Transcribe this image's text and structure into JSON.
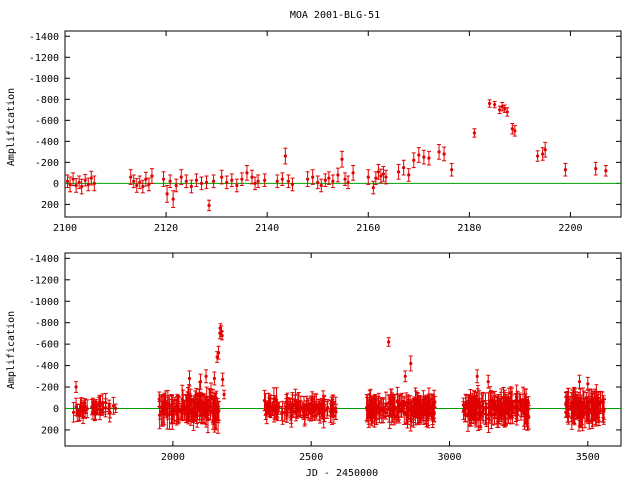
{
  "title": "MOA 2001-BLG-51",
  "colors": {
    "points": "#e00000",
    "baseline": "#00a000",
    "frame": "#000000"
  },
  "chart_data": [
    {
      "type": "scatter",
      "name": "top-panel",
      "ylabel": "Amplification",
      "xlabel": "",
      "xlim": [
        2100,
        2210
      ],
      "ylim": [
        320,
        -1450
      ],
      "y_inverted": true,
      "xticks": [
        2100,
        2120,
        2140,
        2160,
        2180,
        2200
      ],
      "yticks": [
        -1400,
        -1200,
        -1000,
        -800,
        -600,
        -400,
        -200,
        0,
        200
      ],
      "baseline": 0,
      "error_bars": true,
      "points": [
        [
          2100.5,
          -20,
          60
        ],
        [
          2101,
          10,
          70
        ],
        [
          2101.6,
          -40,
          60
        ],
        [
          2102.2,
          20,
          65
        ],
        [
          2102.8,
          -10,
          60
        ],
        [
          2103.3,
          30,
          70
        ],
        [
          2104,
          -30,
          55
        ],
        [
          2104.6,
          10,
          60
        ],
        [
          2105.2,
          -50,
          65
        ],
        [
          2105.8,
          0,
          70
        ],
        [
          2113,
          -60,
          70
        ],
        [
          2113.6,
          -20,
          60
        ],
        [
          2114.2,
          20,
          65
        ],
        [
          2114.8,
          -10,
          60
        ],
        [
          2115.4,
          30,
          60
        ],
        [
          2116,
          -40,
          65
        ],
        [
          2116.6,
          10,
          60
        ],
        [
          2117.2,
          -70,
          70
        ],
        [
          2119.5,
          -40,
          70
        ],
        [
          2120.2,
          100,
          80
        ],
        [
          2120.8,
          -20,
          60
        ],
        [
          2121.4,
          150,
          80
        ],
        [
          2122,
          20,
          60
        ],
        [
          2123,
          -60,
          70
        ],
        [
          2124,
          -20,
          60
        ],
        [
          2125,
          30,
          60
        ],
        [
          2126,
          -30,
          60
        ],
        [
          2127,
          0,
          60
        ],
        [
          2128,
          -10,
          60
        ],
        [
          2128.5,
          210,
          50
        ],
        [
          2129.4,
          -20,
          60
        ],
        [
          2131,
          -60,
          65
        ],
        [
          2132,
          -10,
          60
        ],
        [
          2133,
          -30,
          60
        ],
        [
          2134,
          20,
          60
        ],
        [
          2135,
          -40,
          60
        ],
        [
          2136,
          -100,
          70
        ],
        [
          2137,
          -60,
          65
        ],
        [
          2137.6,
          0,
          60
        ],
        [
          2138.2,
          -20,
          60
        ],
        [
          2139.5,
          -30,
          60
        ],
        [
          2142,
          -20,
          60
        ],
        [
          2143,
          -40,
          60
        ],
        [
          2143.6,
          -260,
          75
        ],
        [
          2144.2,
          -20,
          60
        ],
        [
          2145,
          10,
          60
        ],
        [
          2148,
          -40,
          70
        ],
        [
          2149,
          -60,
          70
        ],
        [
          2150,
          -10,
          60
        ],
        [
          2150.7,
          20,
          60
        ],
        [
          2151.5,
          -30,
          60
        ],
        [
          2152.2,
          -50,
          60
        ],
        [
          2153,
          -20,
          60
        ],
        [
          2154,
          -80,
          65
        ],
        [
          2154.8,
          -230,
          75
        ],
        [
          2155.4,
          -40,
          60
        ],
        [
          2156,
          -10,
          60
        ],
        [
          2157,
          -100,
          70
        ],
        [
          2160,
          -60,
          70
        ],
        [
          2161,
          40,
          60
        ],
        [
          2161.5,
          -50,
          60
        ],
        [
          2162,
          -110,
          70
        ],
        [
          2162.5,
          -70,
          65
        ],
        [
          2163,
          -90,
          70
        ],
        [
          2163.5,
          -60,
          65
        ],
        [
          2166,
          -110,
          70
        ],
        [
          2167,
          -150,
          70
        ],
        [
          2168,
          -80,
          60
        ],
        [
          2169,
          -220,
          70
        ],
        [
          2170,
          -270,
          70
        ],
        [
          2171,
          -250,
          65
        ],
        [
          2172,
          -240,
          65
        ],
        [
          2174,
          -300,
          70
        ],
        [
          2175,
          -280,
          65
        ],
        [
          2176.5,
          -130,
          60
        ],
        [
          2181,
          -480,
          40
        ],
        [
          2184,
          -760,
          35
        ],
        [
          2185,
          -750,
          30
        ],
        [
          2186,
          -700,
          35
        ],
        [
          2186.5,
          -730,
          40
        ],
        [
          2187,
          -710,
          35
        ],
        [
          2187.5,
          -680,
          40
        ],
        [
          2188.5,
          -520,
          50
        ],
        [
          2189,
          -500,
          50
        ],
        [
          2193.5,
          -260,
          50
        ],
        [
          2194.5,
          -280,
          60
        ],
        [
          2195,
          -320,
          70
        ],
        [
          2199,
          -130,
          60
        ],
        [
          2205,
          -140,
          60
        ],
        [
          2207,
          -120,
          50
        ]
      ]
    },
    {
      "type": "scatter",
      "name": "bottom-panel",
      "ylabel": "Amplification",
      "xlabel": "JD - 2450000",
      "xlim": [
        1610,
        3620
      ],
      "ylim": [
        350,
        -1450
      ],
      "y_inverted": true,
      "xticks": [
        2000,
        2500,
        3000,
        3500
      ],
      "yticks": [
        -1400,
        -1200,
        -1000,
        -800,
        -600,
        -400,
        -200,
        0,
        200
      ],
      "baseline": 0,
      "error_bars": true,
      "clusters": [
        {
          "x": [
            1640,
            1760
          ],
          "y_spread": 110,
          "err": 70,
          "n": 40
        },
        {
          "x": [
            1760,
            1800
          ],
          "y_spread": 80,
          "err": 70,
          "n": 6
        },
        {
          "x": [
            1950,
            2170
          ],
          "y_spread": 180,
          "err": 110,
          "n": 140
        },
        {
          "x": [
            2330,
            2590
          ],
          "y_spread": 120,
          "err": 90,
          "n": 120
        },
        {
          "x": [
            2700,
            2950
          ],
          "y_spread": 140,
          "err": 100,
          "n": 150
        },
        {
          "x": [
            3050,
            3290
          ],
          "y_spread": 150,
          "err": 110,
          "n": 140
        },
        {
          "x": [
            3420,
            3560
          ],
          "y_spread": 140,
          "err": 110,
          "n": 100
        }
      ],
      "points": [
        [
          1650,
          -200,
          50
        ],
        [
          2060,
          -280,
          70
        ],
        [
          2100,
          -250,
          70
        ],
        [
          2120,
          -300,
          60
        ],
        [
          2150,
          -280,
          60
        ],
        [
          2160,
          -480,
          50
        ],
        [
          2165,
          -520,
          60
        ],
        [
          2170,
          -700,
          50
        ],
        [
          2172,
          -750,
          40
        ],
        [
          2175,
          -720,
          50
        ],
        [
          2178,
          -680,
          40
        ],
        [
          2180,
          -270,
          60
        ],
        [
          2185,
          -130,
          40
        ],
        [
          2780,
          -620,
          40
        ],
        [
          2840,
          -300,
          50
        ],
        [
          2860,
          -420,
          70
        ],
        [
          3100,
          -300,
          60
        ],
        [
          3140,
          -250,
          60
        ],
        [
          3470,
          -250,
          60
        ],
        [
          3500,
          -230,
          60
        ]
      ]
    }
  ]
}
